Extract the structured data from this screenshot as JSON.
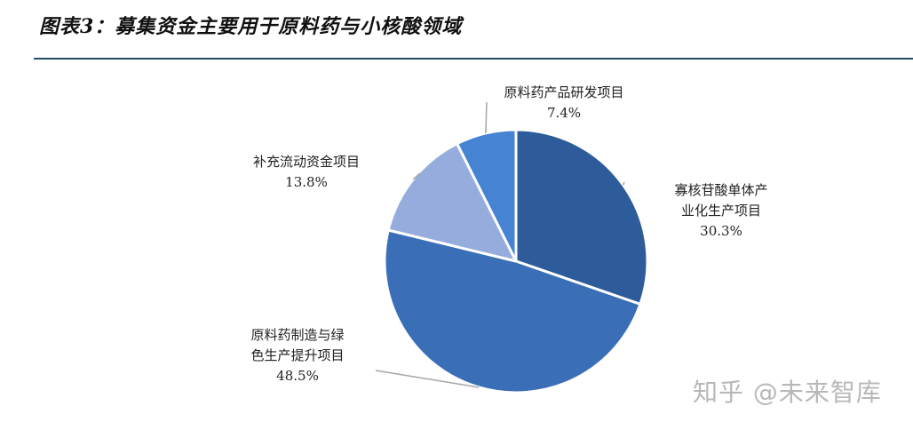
{
  "title": "图表3：募集资金主要用于原料药与小核酸领域",
  "watermark": "知乎 @未来智库",
  "colors": {
    "title_rule": "#1f4e63",
    "slice_edge": "#ffffff",
    "leader_line": "#a6a6a6"
  },
  "chart_data": {
    "type": "pie",
    "start_angle_deg": 0,
    "direction": "clockwise",
    "slices": [
      {
        "lines": [
          "寡核苷酸单体产",
          "业化生产项目"
        ],
        "value": 30.3,
        "value_label": "30.3%",
        "color": "#2e5c9a"
      },
      {
        "lines": [
          "原料药制造与绿",
          "色生产提升项目"
        ],
        "value": 48.5,
        "value_label": "48.5%",
        "color": "#3a6fb7"
      },
      {
        "lines": [
          "补充流动资金项目"
        ],
        "value": 13.8,
        "value_label": "13.8%",
        "color": "#95acdc"
      },
      {
        "lines": [
          "原料药产品研发项目"
        ],
        "value": 7.4,
        "value_label": "7.4%",
        "color": "#4683d2"
      }
    ]
  }
}
